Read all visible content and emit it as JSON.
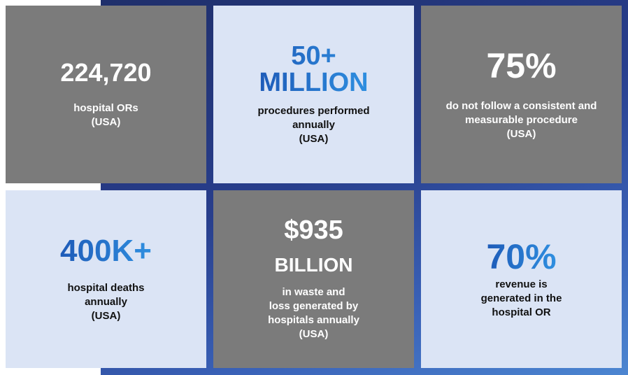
{
  "stats": [
    {
      "value": "224,720",
      "description": "hospital ORs\n(USA)"
    },
    {
      "value": "50+\nMILLION",
      "description": "procedures performed\nannually\n(USA)"
    },
    {
      "value": "75%",
      "description": "do not follow a consistent and\nmeasurable procedure\n(USA)"
    },
    {
      "value": "400K+",
      "description": "hospital deaths\nannually\n(USA)"
    },
    {
      "value_line1": "$935",
      "value_line2": "BILLION",
      "description": "in waste and\nloss generated by\nhospitals annually\n(USA)"
    },
    {
      "value": "70%",
      "description": "revenue is\ngenerated in the\nhospital OR"
    }
  ],
  "colors": {
    "tile_gray": "#7b7b7b",
    "tile_light": "#dbe4f5",
    "accent_blue": "#1e5bb8",
    "backdrop_navy": "#1f2f6b"
  }
}
